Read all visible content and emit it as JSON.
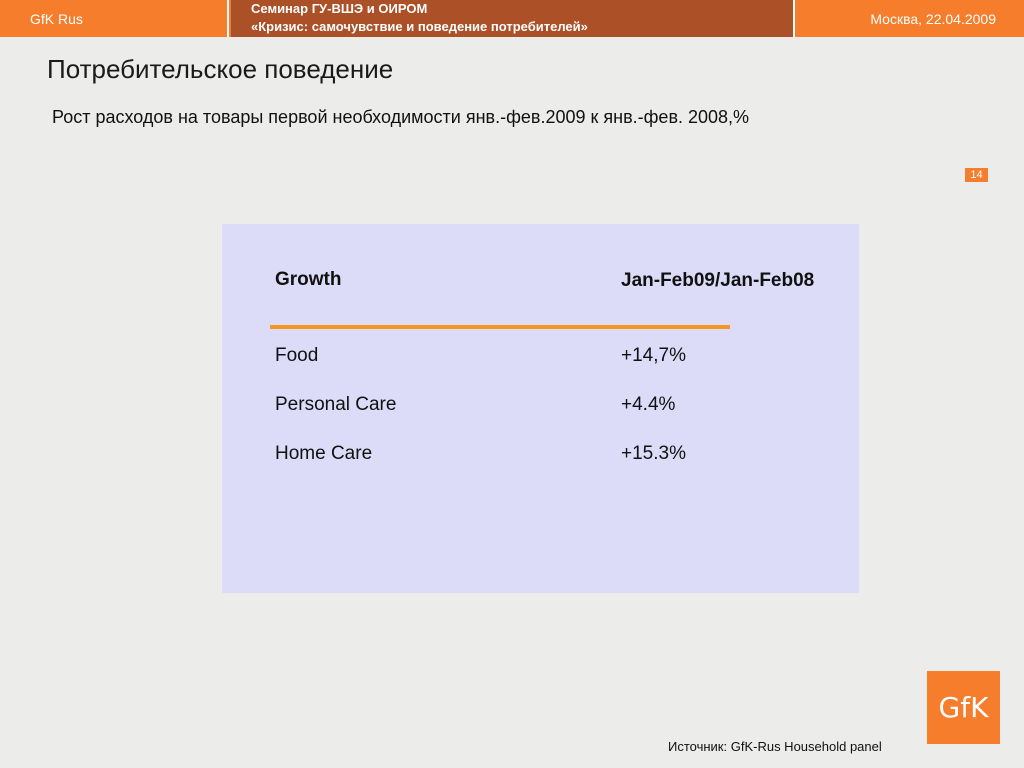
{
  "header": {
    "brand": "GfK Rus",
    "seminar_line1": "Семинар ГУ-ВШЭ и ОИРОМ",
    "seminar_line2": "«Кризис: самочувствие и поведение потребителей»",
    "date": "Москва, 22.04.2009"
  },
  "slide": {
    "title": "Потребительское поведение",
    "subtitle": "Рост расходов на товары первой необходимости янв.-фев.2009 к янв.-фев. 2008,%",
    "number": "14"
  },
  "table": {
    "headers": [
      "Growth",
      "Jan-Feb09/Jan-Feb08"
    ],
    "rows": [
      [
        "Food",
        "+14,7%"
      ],
      [
        "Personal Care",
        "+4.4%"
      ],
      [
        "Home Care",
        "+15.3%"
      ]
    ]
  },
  "footer": {
    "logo_text": "GfK",
    "source": "Источник: GfK-Rus Household panel"
  },
  "colors": {
    "accent_orange": "#f57d2b",
    "header_dark": "#ab5027",
    "table_bg": "#dcdcf8",
    "rule": "#f5961e"
  }
}
